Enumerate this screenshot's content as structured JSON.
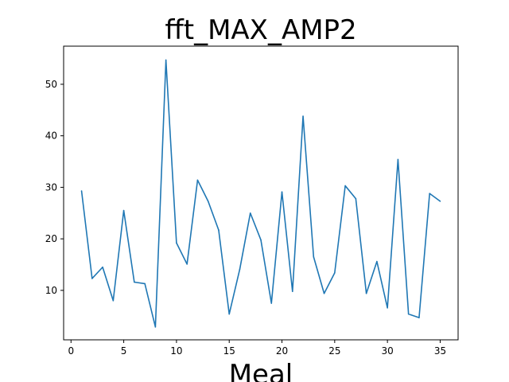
{
  "chart_data": {
    "type": "line",
    "title": "fft_MAX_AMP2",
    "xlabel": "Meal",
    "ylabel": "",
    "xlim": [
      -0.7,
      36.7
    ],
    "ylim": [
      0.4,
      57.4
    ],
    "xticks": [
      0,
      5,
      10,
      15,
      20,
      25,
      30,
      35
    ],
    "yticks": [
      10,
      20,
      30,
      40,
      50
    ],
    "grid": false,
    "color": "#1f77b4",
    "series": [
      {
        "x": [
          1,
          2,
          3,
          4,
          5,
          6,
          7,
          8,
          9,
          10,
          11,
          12,
          13,
          14,
          15,
          16,
          17,
          18,
          19,
          20,
          21,
          22,
          23,
          24,
          25,
          26,
          27,
          28,
          29,
          30,
          31,
          32,
          33,
          34,
          35
        ],
        "values": [
          29.3,
          12.3,
          14.5,
          8.0,
          25.5,
          11.6,
          11.3,
          2.9,
          54.7,
          19.2,
          15.1,
          31.4,
          27.3,
          21.7,
          5.4,
          14.1,
          25.0,
          19.8,
          7.5,
          29.1,
          9.8,
          43.8,
          16.5,
          9.4,
          13.4,
          30.3,
          27.8,
          9.4,
          15.6,
          6.6,
          35.4,
          5.4,
          4.7,
          28.8,
          27.3
        ]
      }
    ]
  }
}
